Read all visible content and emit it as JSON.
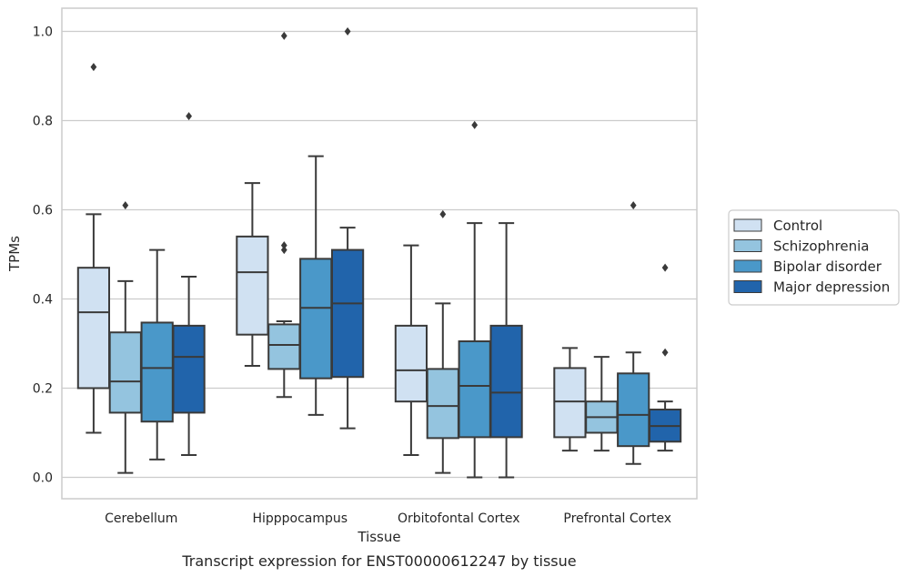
{
  "chart_data": {
    "type": "boxplot",
    "xlabel": "Tissue",
    "ylabel": "TPMs",
    "caption": "Transcript expression for ENST00000612247 by tissue",
    "ylim": [
      -0.048,
      1.052
    ],
    "yticks": [
      "0.0",
      "0.2",
      "0.4",
      "0.6",
      "0.8",
      "1.0"
    ],
    "ytick_values": [
      0.0,
      0.2,
      0.4,
      0.6,
      0.8,
      1.0
    ],
    "grid": true,
    "legend_position": "right",
    "categories": [
      "Cerebellum",
      "Hipppocampus",
      "Orbitofontal Cortex",
      "Prefrontal Cortex"
    ],
    "series": [
      {
        "name": "Control",
        "color": "#d0e1f2",
        "boxes": [
          {
            "whislo": 0.1,
            "q1": 0.2,
            "med": 0.37,
            "q3": 0.47,
            "whishi": 0.59,
            "fliers": [
              0.92
            ]
          },
          {
            "whislo": 0.25,
            "q1": 0.32,
            "med": 0.46,
            "q3": 0.54,
            "whishi": 0.66,
            "fliers": []
          },
          {
            "whislo": 0.05,
            "q1": 0.17,
            "med": 0.24,
            "q3": 0.34,
            "whishi": 0.52,
            "fliers": []
          },
          {
            "whislo": 0.06,
            "q1": 0.09,
            "med": 0.17,
            "q3": 0.245,
            "whishi": 0.29,
            "fliers": []
          }
        ]
      },
      {
        "name": "Schizophrenia",
        "color": "#94c4df",
        "boxes": [
          {
            "whislo": 0.01,
            "q1": 0.145,
            "med": 0.215,
            "q3": 0.325,
            "whishi": 0.44,
            "fliers": [
              0.61
            ]
          },
          {
            "whislo": 0.18,
            "q1": 0.243,
            "med": 0.297,
            "q3": 0.343,
            "whishi": 0.35,
            "fliers": [
              0.51,
              0.52,
              0.99
            ]
          },
          {
            "whislo": 0.01,
            "q1": 0.088,
            "med": 0.16,
            "q3": 0.243,
            "whishi": 0.39,
            "fliers": [
              0.59
            ]
          },
          {
            "whislo": 0.06,
            "q1": 0.1,
            "med": 0.135,
            "q3": 0.17,
            "whishi": 0.27,
            "fliers": []
          }
        ]
      },
      {
        "name": "Bipolar disorder",
        "color": "#4a98c9",
        "boxes": [
          {
            "whislo": 0.04,
            "q1": 0.125,
            "med": 0.245,
            "q3": 0.347,
            "whishi": 0.51,
            "fliers": []
          },
          {
            "whislo": 0.14,
            "q1": 0.222,
            "med": 0.38,
            "q3": 0.49,
            "whishi": 0.72,
            "fliers": []
          },
          {
            "whislo": 0.0,
            "q1": 0.09,
            "med": 0.205,
            "q3": 0.305,
            "whishi": 0.57,
            "fliers": [
              0.79
            ]
          },
          {
            "whislo": 0.03,
            "q1": 0.07,
            "med": 0.14,
            "q3": 0.233,
            "whishi": 0.28,
            "fliers": [
              0.61
            ]
          }
        ]
      },
      {
        "name": "Major depression",
        "color": "#2164ab",
        "boxes": [
          {
            "whislo": 0.05,
            "q1": 0.145,
            "med": 0.27,
            "q3": 0.34,
            "whishi": 0.45,
            "fliers": [
              0.81
            ]
          },
          {
            "whislo": 0.11,
            "q1": 0.225,
            "med": 0.39,
            "q3": 0.51,
            "whishi": 0.56,
            "fliers": [
              1.0
            ]
          },
          {
            "whislo": 0.0,
            "q1": 0.09,
            "med": 0.19,
            "q3": 0.34,
            "whishi": 0.57,
            "fliers": []
          },
          {
            "whislo": 0.06,
            "q1": 0.08,
            "med": 0.115,
            "q3": 0.152,
            "whishi": 0.17,
            "fliers": [
              0.28,
              0.47
            ]
          }
        ]
      }
    ],
    "colors": {
      "edge": "#3a3a3a",
      "grid": "#cccccc",
      "frame": "#cccccc"
    }
  }
}
